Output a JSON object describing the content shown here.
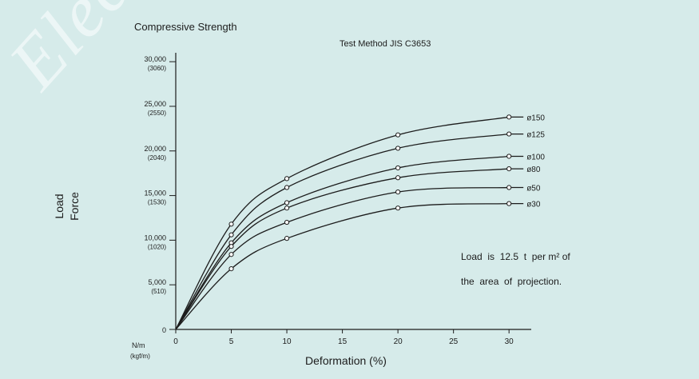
{
  "watermark": "Electric Co",
  "chart_data": {
    "type": "line",
    "title": "Compressive Strength",
    "subtitle": "Test Method JIS C3653",
    "xlabel": "Deformation (%)",
    "ylabel_lines": [
      "Load",
      "Force"
    ],
    "y_unit_lines": [
      "N/m",
      "(kgf/m)"
    ],
    "xlim": [
      0,
      32
    ],
    "ylim": [
      0,
      31000
    ],
    "x_ticks": [
      0,
      5,
      10,
      15,
      20,
      25,
      30
    ],
    "y_ticks": [
      {
        "value": 0,
        "label": "0",
        "sublabel": ""
      },
      {
        "value": 5000,
        "label": "5,000",
        "sublabel": "(510)"
      },
      {
        "value": 10000,
        "label": "10,000",
        "sublabel": "(1020)"
      },
      {
        "value": 15000,
        "label": "15,000",
        "sublabel": "(1530)"
      },
      {
        "value": 20000,
        "label": "20,000",
        "sublabel": "(2040)"
      },
      {
        "value": 25000,
        "label": "25,000",
        "sublabel": "(2550)"
      },
      {
        "value": 30000,
        "label": "30,000",
        "sublabel": "(3060)"
      }
    ],
    "grid": false,
    "marker": "circle",
    "series": [
      {
        "name": "ø150",
        "x": [
          0,
          5,
          10,
          20,
          30
        ],
        "y": [
          0,
          11800,
          16900,
          21800,
          23800
        ]
      },
      {
        "name": "ø125",
        "x": [
          0,
          5,
          10,
          20,
          30
        ],
        "y": [
          0,
          10600,
          15900,
          20300,
          21900
        ]
      },
      {
        "name": "ø100",
        "x": [
          0,
          5,
          10,
          20,
          30
        ],
        "y": [
          0,
          9700,
          14200,
          18100,
          19400
        ]
      },
      {
        "name": "ø80",
        "x": [
          0,
          5,
          10,
          20,
          30
        ],
        "y": [
          0,
          9300,
          13600,
          17000,
          18000
        ]
      },
      {
        "name": "ø50",
        "x": [
          0,
          5,
          10,
          20,
          30
        ],
        "y": [
          0,
          8400,
          12000,
          15400,
          15900
        ]
      },
      {
        "name": "ø30",
        "x": [
          0,
          5,
          10,
          20,
          30
        ],
        "y": [
          0,
          6800,
          10200,
          13600,
          14100
        ]
      }
    ],
    "annotation_lines": [
      "Load  is  12.5  t  per m² of",
      "the  area  of  projection."
    ],
    "colors": {
      "background": "#d6ebea",
      "ink": "#1c1c1c",
      "marker_fill": "#ffffff"
    }
  }
}
